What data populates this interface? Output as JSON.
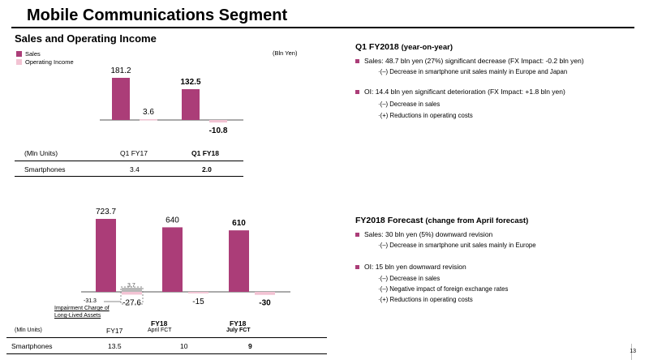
{
  "title": "Mobile Communications Segment",
  "chart_heading": "Sales and Operating Income",
  "colors": {
    "sales": "#ab3d78",
    "oi": "#f2c3d3",
    "bullet": "#ab3d78",
    "impairment": "#b8b8b8"
  },
  "top_chart": {
    "unit_label": "(Bln Yen)",
    "legend": {
      "sales": "Sales",
      "oi": "Operating Income"
    },
    "table_unit": "(Mln Units)",
    "row_label": "Smartphones",
    "columns": [
      {
        "label": "Q1 FY17",
        "smartphones": "3.4"
      },
      {
        "label": "Q1 FY18",
        "smartphones": "2.0"
      }
    ]
  },
  "bottom_chart": {
    "table_unit": "(Mln Units)",
    "row_label": "Smartphones",
    "columns": [
      {
        "label": "FY17",
        "sublabel": "",
        "smartphones": "13.5"
      },
      {
        "label": "FY18",
        "sublabel": "April FCT",
        "smartphones": "10"
      },
      {
        "label": "FY18",
        "sublabel": "July FCT",
        "smartphones": "9"
      }
    ],
    "impairment_label": "Impairment Charge of Long-Lived Assets",
    "impairment_value": "-31.3",
    "impairment_extra": "3.7"
  },
  "chart_data": [
    {
      "type": "bar",
      "categories": [
        "Q1 FY17",
        "Q1 FY18"
      ],
      "series": [
        {
          "name": "Sales",
          "values": [
            181.2,
            132.5
          ]
        },
        {
          "name": "Operating Income",
          "values": [
            3.6,
            -10.8
          ]
        }
      ],
      "labels": {
        "sales": [
          "181.2",
          "132.5"
        ],
        "oi": [
          "3.6",
          "-10.8"
        ]
      },
      "unit": "(Bln Yen)"
    },
    {
      "type": "bar",
      "categories": [
        "FY17",
        "FY18 April FCT",
        "FY18 July FCT"
      ],
      "series": [
        {
          "name": "Sales",
          "values": [
            723.7,
            640,
            610
          ]
        },
        {
          "name": "Operating Income",
          "values": [
            -27.6,
            -15,
            -30
          ]
        }
      ],
      "labels": {
        "sales": [
          "723.7",
          "640",
          "610"
        ],
        "oi": [
          "-27.6",
          "-15",
          "-30"
        ]
      }
    }
  ],
  "q1": {
    "heading": "Q1 FY2018",
    "heading_suffix": "(year-on-year)",
    "sales": {
      "text": "Sales: 48.7 bln yen (27%) significant decrease (FX Impact: -0.2 bln yen)",
      "subs": [
        "·(–) Decrease in smartphone unit sales mainly in Europe and Japan"
      ]
    },
    "oi": {
      "text": "OI: 14.4 bln yen significant deterioration (FX Impact:  +1.8 bln yen)",
      "subs": [
        "·(–) Decrease in sales",
        "·(+) Reductions in operating costs"
      ]
    }
  },
  "forecast": {
    "heading": "FY2018 Forecast",
    "heading_suffix": "(change from April forecast)",
    "sales": {
      "text": "Sales: 30 bln yen (5%) downward revision",
      "subs": [
        "·(–) Decrease in smartphone unit sales mainly in Europe"
      ]
    },
    "oi": {
      "text": "OI: 15 bln yen downward revision",
      "subs": [
        "·(–) Decrease in sales",
        "·(–) Negative impact of foreign exchange rates",
        "·(+) Reductions in operating costs"
      ]
    }
  },
  "page_number": "13"
}
